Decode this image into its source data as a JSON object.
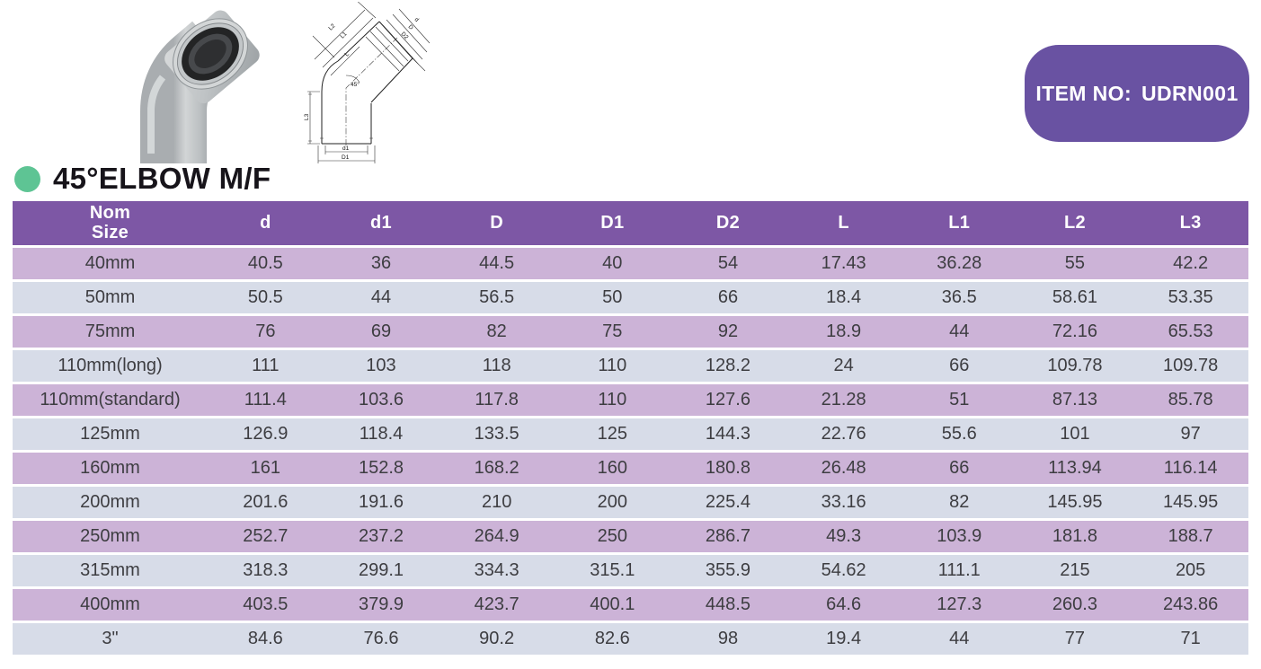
{
  "badge": {
    "label": "ITEM NO:",
    "value": "UDRN001"
  },
  "product": {
    "title": "45°ELBOW M/F"
  },
  "colors": {
    "header_purple": "#7d57a5",
    "badge_purple": "#6952a2",
    "row_mauve": "#ccb3d7",
    "row_blue_grey": "#d7dce8",
    "bullet_green": "#5ec494"
  },
  "drawing": {
    "labels": {
      "L2": "L2",
      "L1": "L1",
      "L": "L",
      "D2": "D2",
      "D": "D",
      "d": "d",
      "angle": "45°",
      "L3": "L3",
      "d1": "d1",
      "D1": "D1"
    }
  },
  "spec_table": {
    "header": {
      "nom_line1": "Nom",
      "nom_line2": "Size",
      "columns": [
        "d",
        "d1",
        "D",
        "D1",
        "D2",
        "L",
        "L1",
        "L2",
        "L3"
      ]
    },
    "rows": [
      {
        "size": "40mm",
        "values": [
          "40.5",
          "36",
          "44.5",
          "40",
          "54",
          "17.43",
          "36.28",
          "55",
          "42.2"
        ]
      },
      {
        "size": "50mm",
        "values": [
          "50.5",
          "44",
          "56.5",
          "50",
          "66",
          "18.4",
          "36.5",
          "58.61",
          "53.35"
        ]
      },
      {
        "size": "75mm",
        "values": [
          "76",
          "69",
          "82",
          "75",
          "92",
          "18.9",
          "44",
          "72.16",
          "65.53"
        ]
      },
      {
        "size": "110mm(long)",
        "values": [
          "111",
          "103",
          "118",
          "110",
          "128.2",
          "24",
          "66",
          "109.78",
          "109.78"
        ]
      },
      {
        "size": "110mm(standard)",
        "values": [
          "111.4",
          "103.6",
          "117.8",
          "110",
          "127.6",
          "21.28",
          "51",
          "87.13",
          "85.78"
        ]
      },
      {
        "size": "125mm",
        "values": [
          "126.9",
          "118.4",
          "133.5",
          "125",
          "144.3",
          "22.76",
          "55.6",
          "101",
          "97"
        ]
      },
      {
        "size": "160mm",
        "values": [
          "161",
          "152.8",
          "168.2",
          "160",
          "180.8",
          "26.48",
          "66",
          "113.94",
          "116.14"
        ]
      },
      {
        "size": "200mm",
        "values": [
          "201.6",
          "191.6",
          "210",
          "200",
          "225.4",
          "33.16",
          "82",
          "145.95",
          "145.95"
        ]
      },
      {
        "size": "250mm",
        "values": [
          "252.7",
          "237.2",
          "264.9",
          "250",
          "286.7",
          "49.3",
          "103.9",
          "181.8",
          "188.7"
        ]
      },
      {
        "size": "315mm",
        "values": [
          "318.3",
          "299.1",
          "334.3",
          "315.1",
          "355.9",
          "54.62",
          "111.1",
          "215",
          "205"
        ]
      },
      {
        "size": "400mm",
        "values": [
          "403.5",
          "379.9",
          "423.7",
          "400.1",
          "448.5",
          "64.6",
          "127.3",
          "260.3",
          "243.86"
        ]
      },
      {
        "size": "3\"",
        "values": [
          "84.6",
          "76.6",
          "90.2",
          "82.6",
          "98",
          "19.4",
          "44",
          "77",
          "71"
        ]
      }
    ]
  }
}
